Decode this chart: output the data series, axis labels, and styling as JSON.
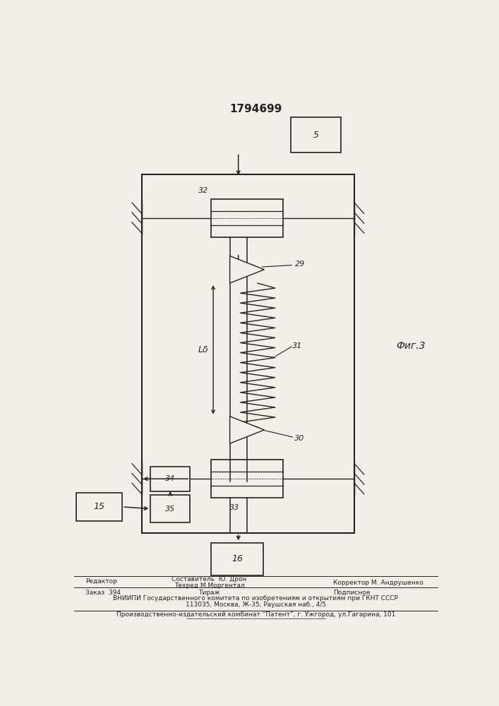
{
  "title": "1794699",
  "fig_label": "Фиг.3",
  "bg_color": "#f2efe9",
  "line_color": "#222222",
  "fs_title": 11,
  "fs_label": 8,
  "fs_fig": 10,
  "fs_footer": 6.5,
  "footer_line1_col1": "Редактор",
  "footer_line1_col2_1": "Составитель  Ю. Дрон",
  "footer_line1_col2_2": "Техред М.Моргентал",
  "footer_line1_col3": "Корректор М. Андрушенко",
  "footer_line2_col1": "Заказ  394",
  "footer_line2_col2": "Тираж",
  "footer_line2_col3": "Подписное",
  "footer_line3": "ВНИИПИ Государственного комитета по изобретениям и открытиям при ГКНТ СССР",
  "footer_line4": "113035, Москва, Ж-35, Раушская наб., 4/5",
  "footer_line5": "Производственно-издательский комбинат “Патент”, г. Ужгород, ул.Гагарина, 101"
}
